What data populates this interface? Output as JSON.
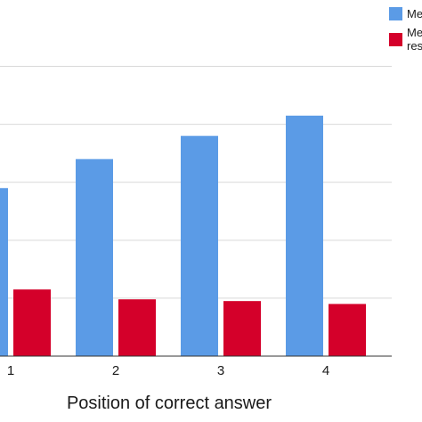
{
  "chart_data": {
    "type": "bar",
    "title": "",
    "xlabel": "Position of correct answer",
    "ylabel": "",
    "categories": [
      "1",
      "2",
      "3",
      "4"
    ],
    "ylim": [
      0,
      5.5
    ],
    "grid": true,
    "legend_position": "top-right",
    "series": [
      {
        "name": "Me",
        "legend_text": [
          "Me"
        ],
        "color": "#5b9be6",
        "values": [
          2.9,
          3.4,
          3.8,
          4.15
        ]
      },
      {
        "name": "Me res",
        "legend_text": [
          "Me",
          "res"
        ],
        "color": "#d4002a",
        "values": [
          1.15,
          0.98,
          0.95,
          0.9
        ]
      }
    ]
  }
}
